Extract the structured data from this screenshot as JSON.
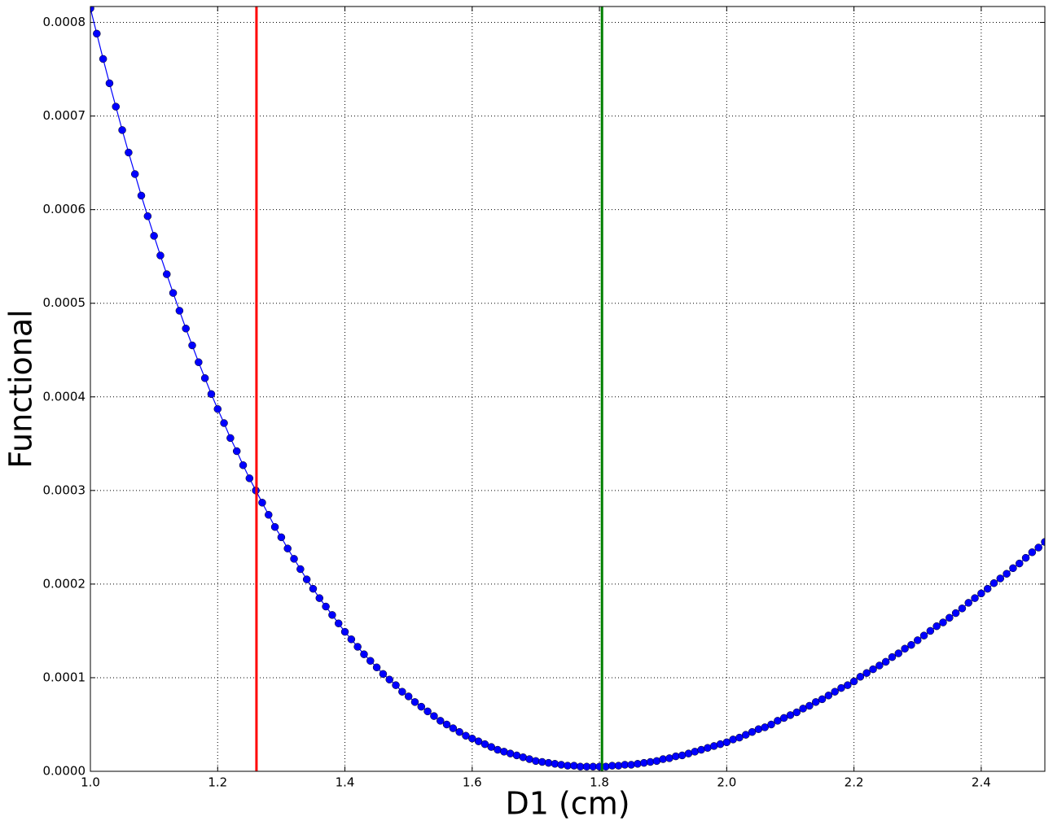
{
  "chart_data": {
    "type": "line",
    "xlabel": "D1 (cm)",
    "ylabel": "Functional",
    "xlim": [
      1.0,
      2.5
    ],
    "ylim": [
      0,
      0.000817
    ],
    "xticks": [
      {
        "value": 1.0,
        "label": "1.0"
      },
      {
        "value": 1.2,
        "label": "1.2"
      },
      {
        "value": 1.4,
        "label": "1.4"
      },
      {
        "value": 1.6,
        "label": "1.6"
      },
      {
        "value": 1.8,
        "label": "1.8"
      },
      {
        "value": 2.0,
        "label": "2.0"
      },
      {
        "value": 2.2,
        "label": "2.2"
      },
      {
        "value": 2.4,
        "label": "2.4"
      }
    ],
    "yticks": [
      {
        "value": 0,
        "label": "0.0000"
      },
      {
        "value": 0.0001,
        "label": "0.0001"
      },
      {
        "value": 0.0002,
        "label": "0.0002"
      },
      {
        "value": 0.0003,
        "label": "0.0003"
      },
      {
        "value": 0.0004,
        "label": "0.0004"
      },
      {
        "value": 0.0005,
        "label": "0.0005"
      },
      {
        "value": 0.0006,
        "label": "0.0006"
      },
      {
        "value": 0.0007,
        "label": "0.0007"
      },
      {
        "value": 0.0008,
        "label": "0.0008"
      }
    ],
    "grid": true,
    "x": [
      1.0,
      1.01,
      1.02,
      1.03,
      1.04,
      1.05,
      1.06,
      1.07,
      1.08,
      1.09,
      1.1,
      1.11,
      1.12,
      1.13,
      1.14,
      1.15,
      1.16,
      1.17,
      1.18,
      1.19,
      1.2,
      1.21,
      1.22,
      1.23,
      1.24,
      1.25,
      1.26,
      1.27,
      1.28,
      1.29,
      1.3,
      1.31,
      1.32,
      1.33,
      1.34,
      1.35,
      1.36,
      1.37,
      1.38,
      1.39,
      1.4,
      1.41,
      1.42,
      1.43,
      1.44,
      1.45,
      1.46,
      1.47,
      1.48,
      1.49,
      1.5,
      1.51,
      1.52,
      1.53,
      1.54,
      1.55,
      1.56,
      1.57,
      1.58,
      1.59,
      1.6,
      1.61,
      1.62,
      1.63,
      1.64,
      1.65,
      1.66,
      1.67,
      1.68,
      1.69,
      1.7,
      1.71,
      1.72,
      1.73,
      1.74,
      1.75,
      1.76,
      1.77,
      1.78,
      1.79,
      1.8,
      1.81,
      1.82,
      1.83,
      1.84,
      1.85,
      1.86,
      1.87,
      1.88,
      1.89,
      1.9,
      1.91,
      1.92,
      1.93,
      1.94,
      1.95,
      1.96,
      1.97,
      1.98,
      1.99,
      2.0,
      2.01,
      2.02,
      2.03,
      2.04,
      2.05,
      2.06,
      2.07,
      2.08,
      2.09,
      2.1,
      2.11,
      2.12,
      2.13,
      2.14,
      2.15,
      2.16,
      2.17,
      2.18,
      2.19,
      2.2,
      2.21,
      2.22,
      2.23,
      2.24,
      2.25,
      2.26,
      2.27,
      2.28,
      2.29,
      2.3,
      2.31,
      2.32,
      2.33,
      2.34,
      2.35,
      2.36,
      2.37,
      2.38,
      2.39,
      2.4,
      2.41,
      2.42,
      2.43,
      2.44,
      2.45,
      2.46,
      2.47,
      2.48,
      2.49,
      2.5
    ],
    "series": [
      {
        "color": "#0000ff",
        "values": [
          0.000815,
          0.000788,
          0.000761,
          0.000735,
          0.00071,
          0.000685,
          0.000661,
          0.000638,
          0.000615,
          0.000593,
          0.000572,
          0.000551,
          0.000531,
          0.000511,
          0.000492,
          0.000473,
          0.000455,
          0.000437,
          0.00042,
          0.000403,
          0.000387,
          0.000372,
          0.000356,
          0.000342,
          0.000327,
          0.000313,
          0.0003,
          0.000287,
          0.000274,
          0.000261,
          0.00025,
          0.000238,
          0.000227,
          0.000216,
          0.000205,
          0.000195,
          0.000185,
          0.000176,
          0.000167,
          0.000158,
          0.000149,
          0.000141,
          0.000133,
          0.000125,
          0.000118,
          0.000111,
          0.000104,
          9.8e-05,
          9.2e-05,
          8.5e-05,
          8e-05,
          7.4e-05,
          6.9e-05,
          6.4e-05,
          5.9e-05,
          5.4e-05,
          5e-05,
          4.6e-05,
          4.2e-05,
          3.8e-05,
          3.5e-05,
          3.2e-05,
          2.9e-05,
          2.6e-05,
          2.3e-05,
          2.1e-05,
          1.9e-05,
          1.7e-05,
          1.5e-05,
          1.3e-05,
          1.1e-05,
          1e-05,
          9e-06,
          8e-06,
          7e-06,
          6e-06,
          6e-06,
          5e-06,
          5e-06,
          5e-06,
          5e-06,
          5e-06,
          6e-06,
          6e-06,
          7e-06,
          7e-06,
          8e-06,
          9e-06,
          1e-05,
          1.1e-05,
          1.3e-05,
          1.4e-05,
          1.6e-05,
          1.7e-05,
          1.9e-05,
          2.1e-05,
          2.3e-05,
          2.5e-05,
          2.7e-05,
          2.9e-05,
          3.1e-05,
          3.4e-05,
          3.6e-05,
          3.9e-05,
          4.2e-05,
          4.5e-05,
          4.7e-05,
          5e-05,
          5.4e-05,
          5.7e-05,
          6e-05,
          6.3e-05,
          6.7e-05,
          7e-05,
          7.4e-05,
          7.7e-05,
          8.1e-05,
          8.5e-05,
          8.9e-05,
          9.2e-05,
          9.6e-05,
          0.000101,
          0.000105,
          0.000109,
          0.000113,
          0.000117,
          0.000122,
          0.000126,
          0.000131,
          0.000135,
          0.00014,
          0.000145,
          0.00015,
          0.000155,
          0.000159,
          0.000164,
          0.000169,
          0.000174,
          0.00018,
          0.000185,
          0.00019,
          0.000195,
          0.000201,
          0.000206,
          0.000211,
          0.000217,
          0.000222,
          0.000228,
          0.000234,
          0.000239,
          0.000245
        ]
      }
    ],
    "vlines": [
      {
        "x": 1.261,
        "color": "#ff0000"
      },
      {
        "x": 1.804,
        "color": "#007f00"
      }
    ]
  }
}
